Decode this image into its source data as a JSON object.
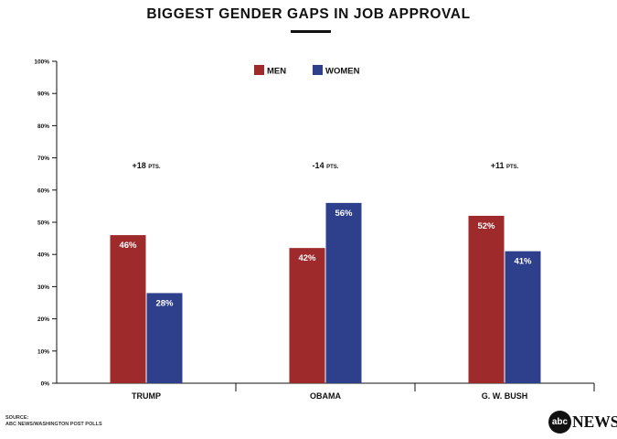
{
  "colors": {
    "men": "#9e2a2b",
    "women": "#2e3f8c"
  },
  "source": {
    "line1": "SOURCE:",
    "line2": "ABC NEWS/WASHINGTON POST POLLS"
  },
  "logo": {
    "mark": "abc",
    "text": "NEWS"
  },
  "chart_data": {
    "type": "bar",
    "title": "BIGGEST GENDER GAPS IN JOB APPROVAL",
    "xlabel": "",
    "ylabel": "",
    "ylim": [
      0,
      100
    ],
    "yticks": [
      0,
      10,
      20,
      30,
      40,
      50,
      60,
      70,
      80,
      90,
      100
    ],
    "ytick_labels": [
      "0%",
      "10%",
      "20%",
      "30%",
      "40%",
      "50%",
      "60%",
      "70%",
      "80%",
      "90%",
      "100%"
    ],
    "categories": [
      "TRUMP",
      "OBAMA",
      "G. W. BUSH"
    ],
    "series": [
      {
        "name": "MEN",
        "values": [
          46,
          42,
          52
        ],
        "labels": [
          "46%",
          "42%",
          "52%"
        ]
      },
      {
        "name": "WOMEN",
        "values": [
          28,
          56,
          41
        ],
        "labels": [
          "28%",
          "56%",
          "41%"
        ]
      }
    ],
    "annotations": [
      {
        "value": "+18",
        "unit": "PTS."
      },
      {
        "value": "-14",
        "unit": "PTS."
      },
      {
        "value": "+11",
        "unit": "PTS."
      }
    ],
    "legend_position": "top-center",
    "grid": false
  }
}
